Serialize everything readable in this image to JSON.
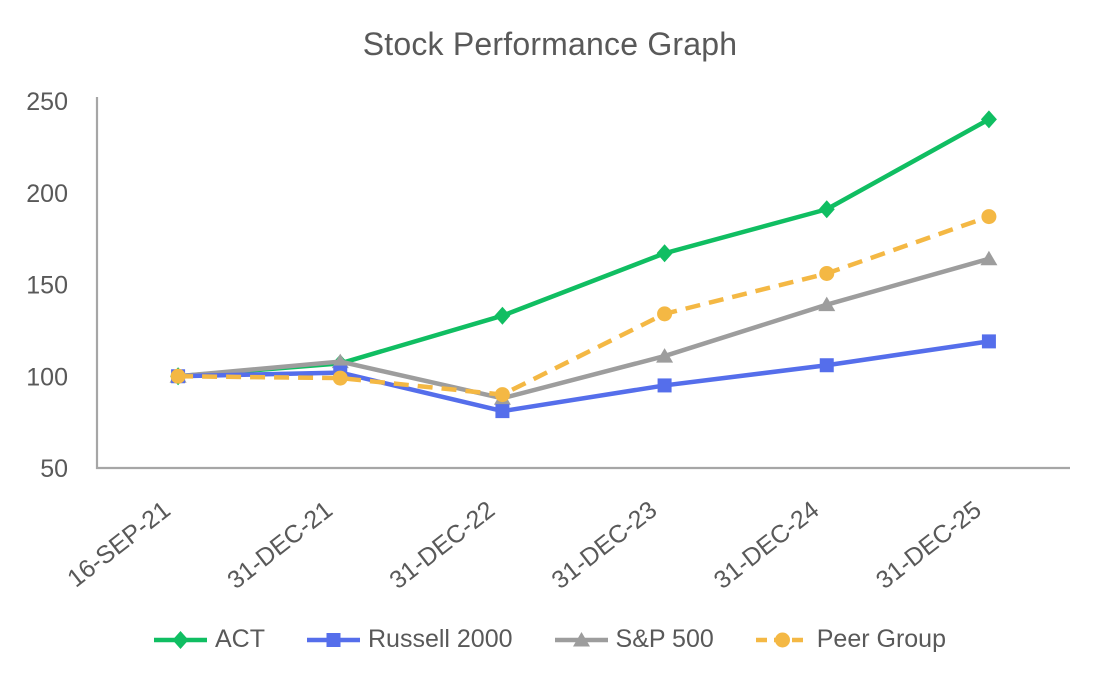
{
  "title": "Stock Performance Graph",
  "text_color": "#595959",
  "axis_color": "#A6A6A6",
  "chart_data": {
    "type": "line",
    "title": "Stock Performance Graph",
    "xlabel": "",
    "ylabel": "",
    "grid": false,
    "legend_position": "bottom",
    "ylim": [
      50,
      250
    ],
    "yticks": [
      250,
      200,
      150,
      100,
      50
    ],
    "categories": [
      "16-SEP-21",
      "31-DEC-21",
      "31-DEC-22",
      "31-DEC-23",
      "31-DEC-24",
      "31-DEC-25"
    ],
    "draw_order": [
      0,
      2,
      1,
      3
    ],
    "series": [
      {
        "name": "ACT",
        "color": "#10BE62",
        "marker": "diamond",
        "line_style": "solid",
        "values": [
          100,
          107,
          133,
          167,
          191,
          240
        ]
      },
      {
        "name": "Russell 2000",
        "color": "#556EEB",
        "marker": "square",
        "line_style": "solid",
        "values": [
          100,
          102,
          81,
          95,
          106,
          119
        ]
      },
      {
        "name": "S&P 500",
        "color": "#9D9D9D",
        "marker": "triangle",
        "line_style": "solid",
        "values": [
          100,
          108,
          88,
          111,
          139,
          164
        ]
      },
      {
        "name": "Peer Group",
        "color": "#F4B844",
        "marker": "circle",
        "line_style": "dashed",
        "values": [
          100,
          99,
          90,
          134,
          156,
          187
        ]
      }
    ]
  }
}
